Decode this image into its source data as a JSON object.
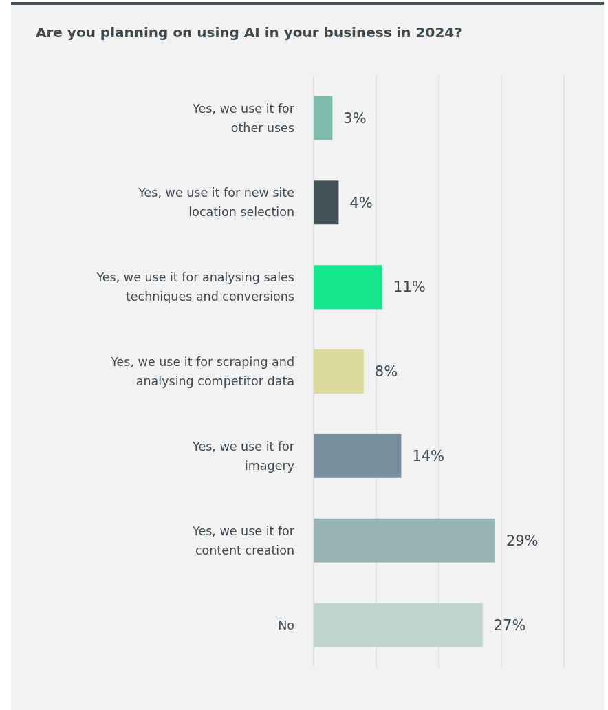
{
  "chart_data": {
    "type": "bar",
    "orientation": "horizontal",
    "title": "Are you planning on using AI in your business in 2024?",
    "categories": [
      "Yes, we use it for\nother uses",
      "Yes, we use it for new site\nlocation selection",
      "Yes, we use it for analysing sales\ntechniques and conversions",
      "Yes, we use it for scraping and\nanalysing competitor data",
      "Yes, we use it for\nimagery",
      "Yes, we use it for\ncontent creation",
      "No"
    ],
    "values": [
      3,
      4,
      11,
      8,
      14,
      29,
      27
    ],
    "colors": [
      "#80bcae",
      "#435357",
      "#14e68c",
      "#dcd99c",
      "#778f9b",
      "#97b3b6",
      "#c0d5cb"
    ],
    "value_labels": [
      "3%",
      "4%",
      "11%",
      "8%",
      "14%",
      "29%",
      "27%"
    ],
    "xlim": [
      0,
      40
    ],
    "xticks": [
      {
        "value": 0,
        "label": null
      },
      {
        "value": 10,
        "label": null
      },
      {
        "value": 20,
        "label": null
      },
      {
        "value": 30,
        "label": null
      },
      {
        "value": 40,
        "label": null
      }
    ],
    "tick_labels": "y",
    "grid": "x"
  }
}
